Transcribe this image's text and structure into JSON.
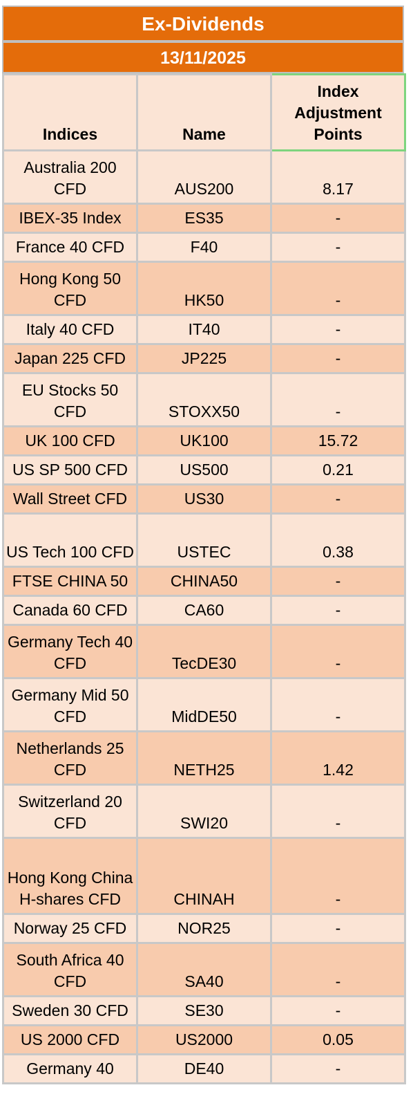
{
  "header": {
    "title": "Ex-Dividends",
    "date": "13/11/2025"
  },
  "columns": {
    "indices": "Indices",
    "name": "Name",
    "adjustment": "Index Adjustment Points"
  },
  "rows": [
    {
      "index": "Australia 200 CFD",
      "name": "AUS200",
      "points": "8.17"
    },
    {
      "index": "IBEX-35 Index",
      "name": "ES35",
      "points": "-"
    },
    {
      "index": "France 40 CFD",
      "name": "F40",
      "points": "-"
    },
    {
      "index": "Hong Kong 50 CFD",
      "name": "HK50",
      "points": "-"
    },
    {
      "index": "Italy 40 CFD",
      "name": "IT40",
      "points": "-"
    },
    {
      "index": "Japan 225 CFD",
      "name": "JP225",
      "points": "-"
    },
    {
      "index": "EU Stocks 50 CFD",
      "name": "STOXX50",
      "points": "-"
    },
    {
      "index": "UK 100 CFD",
      "name": "UK100",
      "points": "15.72"
    },
    {
      "index": "US SP 500 CFD",
      "name": "US500",
      "points": "0.21"
    },
    {
      "index": "Wall Street CFD",
      "name": "US30",
      "points": "-"
    },
    {
      "index": "US Tech 100 CFD",
      "name": "USTEC",
      "points": "0.38"
    },
    {
      "index": "FTSE CHINA 50",
      "name": "CHINA50",
      "points": "-"
    },
    {
      "index": "Canada 60 CFD",
      "name": "CA60",
      "points": "-"
    },
    {
      "index": "Germany Tech 40 CFD",
      "name": "TecDE30",
      "points": "-"
    },
    {
      "index": "Germany Mid 50 CFD",
      "name": "MidDE50",
      "points": "-"
    },
    {
      "index": "Netherlands 25 CFD",
      "name": "NETH25",
      "points": "1.42"
    },
    {
      "index": "Switzerland 20 CFD",
      "name": "SWI20",
      "points": "-"
    },
    {
      "index": "Hong Kong China H-shares CFD",
      "name": "CHINAH",
      "points": "-"
    },
    {
      "index": "Norway 25 CFD",
      "name": "NOR25",
      "points": "-"
    },
    {
      "index": "South Africa 40 CFD",
      "name": "SA40",
      "points": "-"
    },
    {
      "index": "Sweden 30 CFD",
      "name": "SE30",
      "points": "-"
    },
    {
      "index": "US 2000 CFD",
      "name": "US2000",
      "points": "0.05"
    },
    {
      "index": "Germany 40",
      "name": "DE40",
      "points": "-"
    }
  ]
}
